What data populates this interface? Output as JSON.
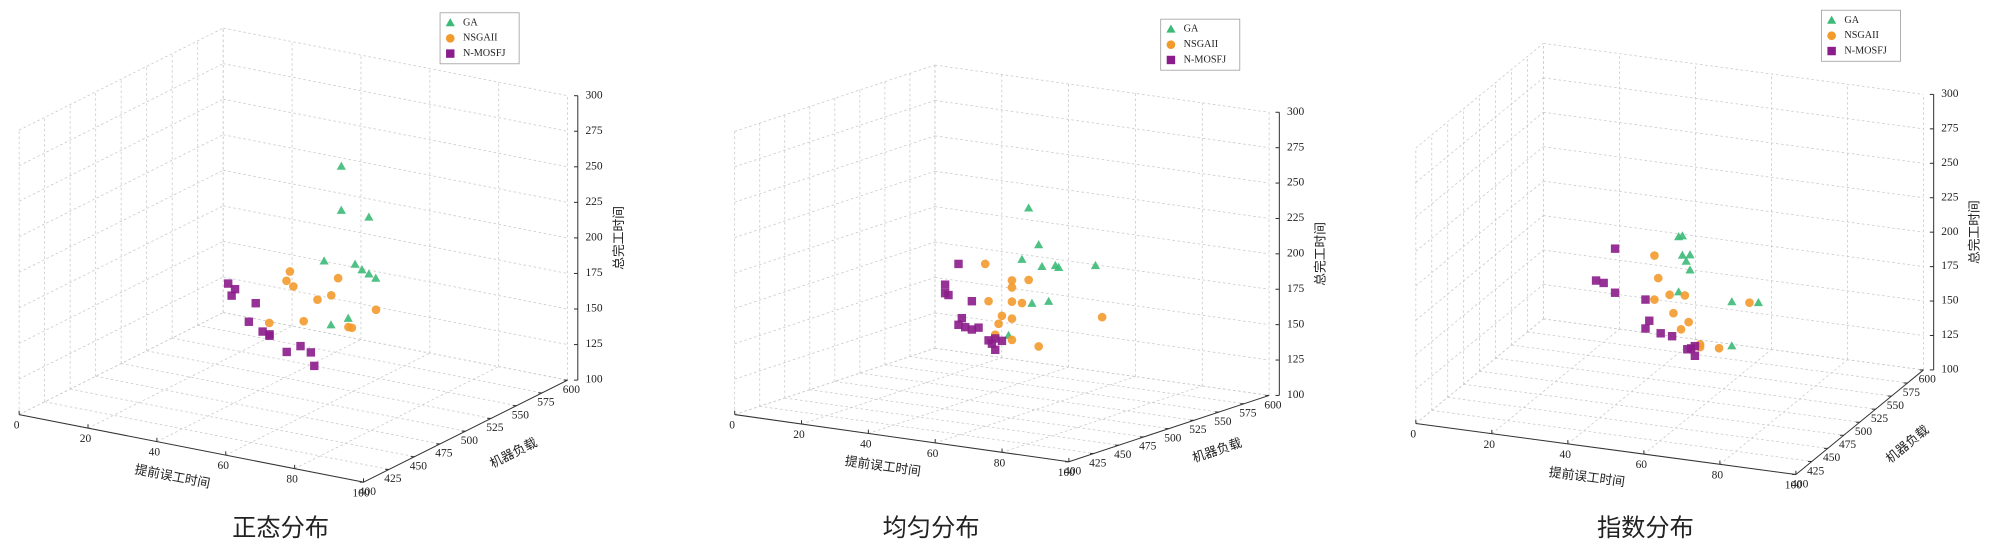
{
  "chart_data": [
    {
      "type": "scatter3d",
      "title": "正态分布",
      "xlabel": "提前误工时间",
      "ylabel": "机器负载",
      "zlabel": "总完工时间",
      "xlim": [
        0,
        100
      ],
      "xticks": [
        0,
        20,
        40,
        60,
        80,
        100
      ],
      "ylim": [
        400,
        600
      ],
      "yticks": [
        400,
        425,
        450,
        475,
        500,
        525,
        550,
        575,
        600
      ],
      "zlim": [
        100,
        300
      ],
      "zticks": [
        100,
        125,
        150,
        175,
        200,
        225,
        250,
        275,
        300
      ],
      "grid": true,
      "legend": "upper right",
      "series": [
        {
          "name": "GA",
          "color": "#3dba78",
          "marker": "triangle",
          "x": [
            58,
            58,
            66,
            53,
            62,
            64,
            66,
            68,
            55,
            60
          ],
          "y": [
            520,
            520,
            520,
            520,
            520,
            520,
            520,
            520,
            520,
            520
          ],
          "z": [
            259,
            228,
            227,
            190,
            192,
            189,
            187,
            185,
            146,
            153
          ]
        },
        {
          "name": "NSGAII",
          "color": "#f39a2c",
          "marker": "circle",
          "x": [
            49,
            48,
            50,
            63,
            61,
            57,
            74,
            53,
            43,
            66,
            67
          ],
          "y": [
            500,
            500,
            500,
            500,
            500,
            500,
            500,
            500,
            500,
            500,
            500
          ],
          "z": [
            188,
            181,
            178,
            190,
            177,
            172,
            173,
            155,
            149,
            157,
            157
          ]
        },
        {
          "name": "N-MOSFJ",
          "color": "#8b1c8b",
          "marker": "square",
          "x": [
            37,
            39,
            38,
            45,
            43,
            47,
            49,
            49,
            58,
            61,
            54,
            62
          ],
          "y": [
            480,
            480,
            480,
            480,
            480,
            480,
            480,
            480,
            480,
            480,
            480,
            480
          ],
          "z": [
            181,
            178,
            173,
            171,
            157,
            152,
            151,
            150,
            147,
            144,
            141,
            135
          ]
        }
      ]
    },
    {
      "type": "scatter3d",
      "title": "均匀分布",
      "xlabel": "提前误工时间",
      "ylabel": "机器负载",
      "zlabel": "总完工时间",
      "xlim": [
        0,
        100
      ],
      "xticks": [
        0,
        20,
        40,
        60,
        80,
        100
      ],
      "ylim": [
        400,
        600
      ],
      "yticks": [
        400,
        425,
        450,
        475,
        500,
        525,
        550,
        575,
        600
      ],
      "zlim": [
        100,
        300
      ],
      "zticks": [
        100,
        125,
        150,
        175,
        200,
        225,
        250,
        275,
        300
      ],
      "grid": true,
      "legend": "upper right",
      "series": [
        {
          "name": "GA",
          "color": "#3dba78",
          "marker": "triangle",
          "x": [
            52,
            55,
            50,
            56,
            60,
            61,
            72,
            53,
            58,
            46
          ],
          "y": [
            520,
            520,
            520,
            520,
            520,
            520,
            520,
            520,
            520,
            520
          ],
          "z": [
            235,
            210,
            198,
            195,
            197,
            196,
            201,
            168,
            171,
            143
          ]
        },
        {
          "name": "NSGAII",
          "color": "#f39a2c",
          "marker": "circle",
          "x": [
            45,
            53,
            58,
            53,
            46,
            53,
            56,
            50,
            49,
            53,
            80,
            48,
            53,
            61
          ],
          "y": [
            500,
            500,
            500,
            500,
            500,
            500,
            500,
            500,
            500,
            500,
            500,
            500,
            500,
            500
          ],
          "z": [
            198,
            189,
            191,
            184,
            172,
            174,
            174,
            163,
            157,
            162,
            172,
            149,
            147,
            145
          ]
        },
        {
          "name": "N-MOSFJ",
          "color": "#8b1c8b",
          "marker": "square",
          "x": [
            43,
            39,
            39,
            40,
            47,
            44,
            43,
            45,
            49,
            47,
            54,
            52,
            53,
            56,
            54
          ],
          "y": [
            480,
            480,
            480,
            480,
            480,
            480,
            480,
            480,
            480,
            480,
            480,
            480,
            480,
            480,
            480
          ],
          "z": [
            202,
            186,
            180,
            179,
            177,
            164,
            159,
            158,
            159,
            157,
            153,
            151,
            149,
            152,
            145
          ]
        }
      ]
    },
    {
      "type": "scatter3d",
      "title": "指数分布",
      "xlabel": "提前误工时间",
      "ylabel": "机器负载",
      "zlabel": "总完工时间",
      "xlim": [
        0,
        100
      ],
      "xticks": [
        0,
        20,
        40,
        60,
        80,
        100
      ],
      "ylim": [
        400,
        600
      ],
      "yticks": [
        400,
        425,
        450,
        475,
        500,
        525,
        550,
        575,
        600
      ],
      "zlim": [
        100,
        300
      ],
      "zticks": [
        100,
        125,
        150,
        175,
        200,
        225,
        250,
        275,
        300
      ],
      "grid": true,
      "legend": "upper right",
      "series": [
        {
          "name": "GA",
          "color": "#3dba78",
          "marker": "triangle",
          "x": [
            49,
            50,
            50,
            52,
            51,
            52,
            63,
            70,
            63,
            49
          ],
          "y": [
            520,
            520,
            520,
            520,
            520,
            520,
            520,
            520,
            520,
            520
          ],
          "z": [
            208,
            209,
            195,
            196,
            191,
            185,
            166,
            168,
            134,
            168
          ]
        },
        {
          "name": "NSGAII",
          "color": "#f39a2c",
          "marker": "circle",
          "x": [
            46,
            47,
            50,
            46,
            54,
            51,
            55,
            53,
            58,
            63,
            71,
            58
          ],
          "y": [
            500,
            500,
            500,
            500,
            500,
            500,
            500,
            500,
            500,
            500,
            500,
            500
          ],
          "z": [
            201,
            185,
            174,
            169,
            175,
            161,
            156,
            150,
            141,
            140,
            176,
            139
          ]
        },
        {
          "name": "N-MOSFJ",
          "color": "#8b1c8b",
          "marker": "square",
          "x": [
            39,
            34,
            36,
            39,
            47,
            48,
            47,
            51,
            54,
            59,
            60,
            60,
            58
          ],
          "y": [
            480,
            480,
            480,
            480,
            480,
            480,
            480,
            480,
            480,
            480,
            480,
            480,
            480
          ],
          "z": [
            211,
            186,
            185,
            179,
            177,
            162,
            156,
            154,
            153,
            146,
            141,
            148,
            145
          ]
        }
      ]
    }
  ]
}
